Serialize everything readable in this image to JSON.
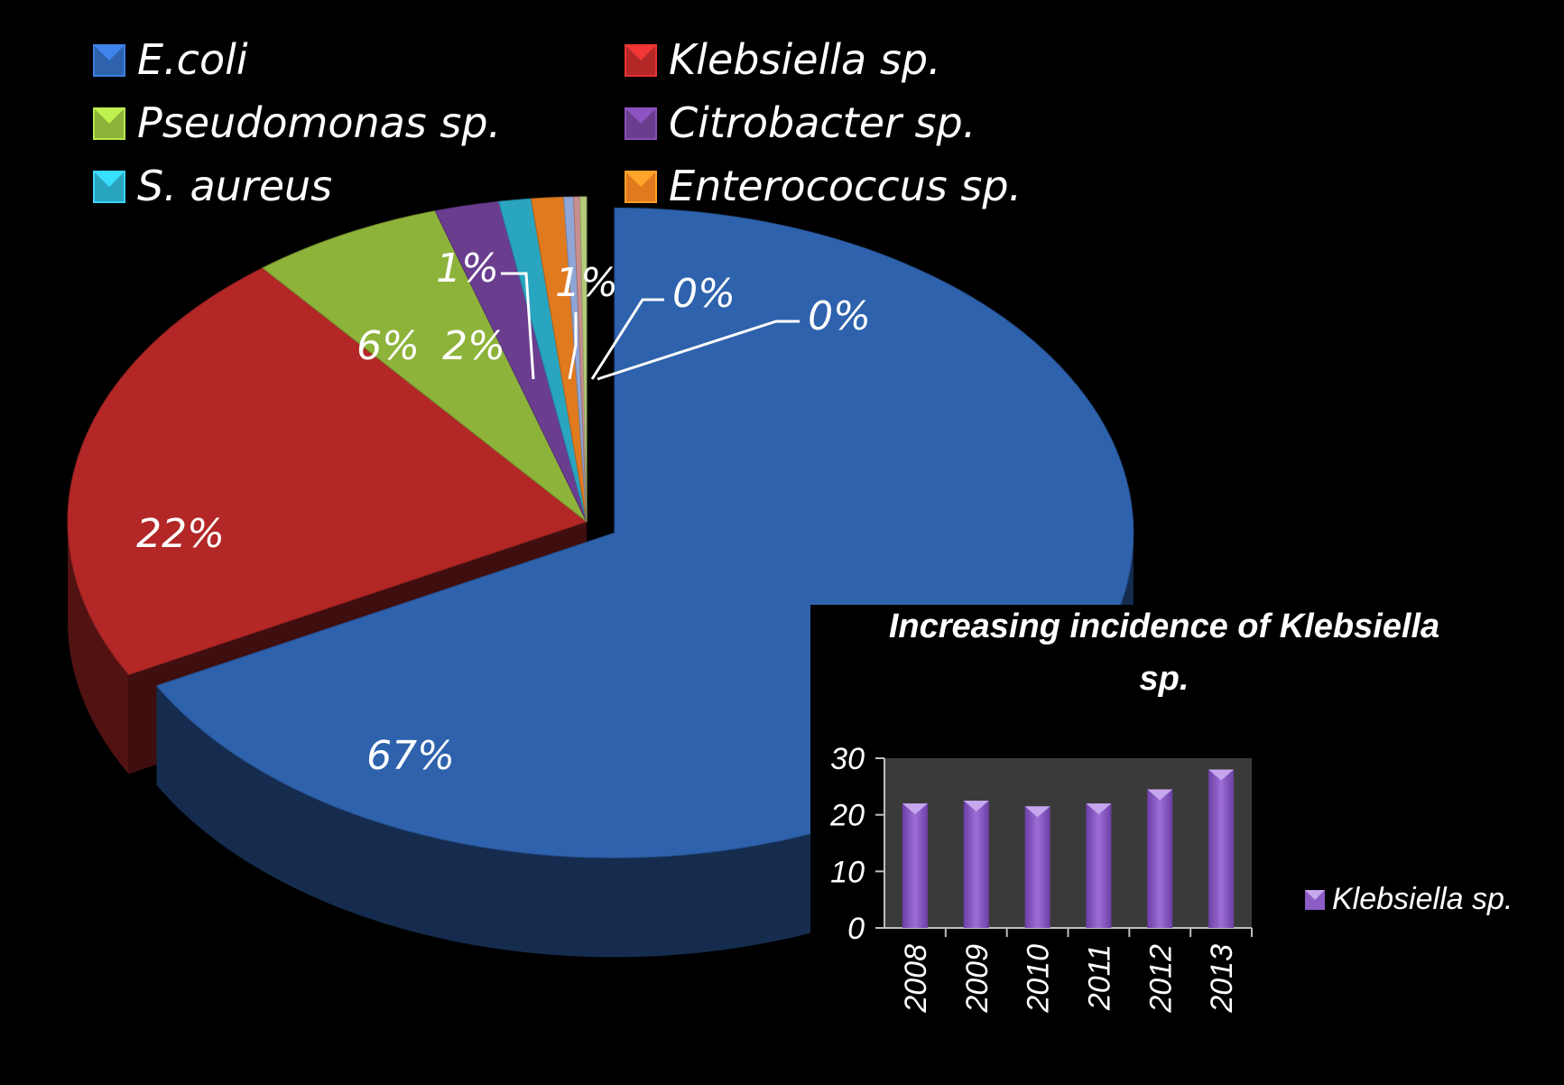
{
  "chart_data": [
    {
      "type": "pie",
      "legend_position": "top",
      "categories": [
        "E.coli",
        "Klebsiella sp.",
        "Pseudomonas sp.",
        "Citrobacter sp.",
        "S. aureus",
        "Enterococcus sp.",
        "",
        "",
        ""
      ],
      "legend": [
        "E.coli",
        "Klebsiella sp.",
        "Pseudomonas sp.",
        "Citrobacter sp.",
        "S. aureus",
        "Enterococcus sp."
      ],
      "values": [
        67,
        22,
        6,
        2,
        1,
        1,
        0.3,
        0.2,
        0.2
      ],
      "labels": [
        "67%",
        "22%",
        "6%",
        "2%",
        "1%",
        "1%",
        "0%",
        "0%",
        ""
      ],
      "colors": [
        "#2e62ad",
        "#b32727",
        "#8db33a",
        "#6a3d8f",
        "#2aa5c0",
        "#e07a1f",
        "#8fa6d6",
        "#c98f8f",
        "#b6cc7c"
      ]
    },
    {
      "type": "bar",
      "title": "Increasing incidence of Klebsiella sp.",
      "categories": [
        "2008",
        "2009",
        "2010",
        "2011",
        "2012",
        "2013"
      ],
      "series": [
        {
          "name": "Klebsiella sp.",
          "values": [
            22,
            22.5,
            21.5,
            22,
            24.5,
            28
          ]
        }
      ],
      "ylim": [
        0,
        30
      ],
      "yticks": [
        0,
        10,
        20,
        30
      ],
      "grid": false,
      "legend_position": "right",
      "colors": {
        "bar": "#8a5cc4",
        "plot_bg": "#3a3a3a",
        "axis": "#bfbfbf"
      }
    }
  ]
}
